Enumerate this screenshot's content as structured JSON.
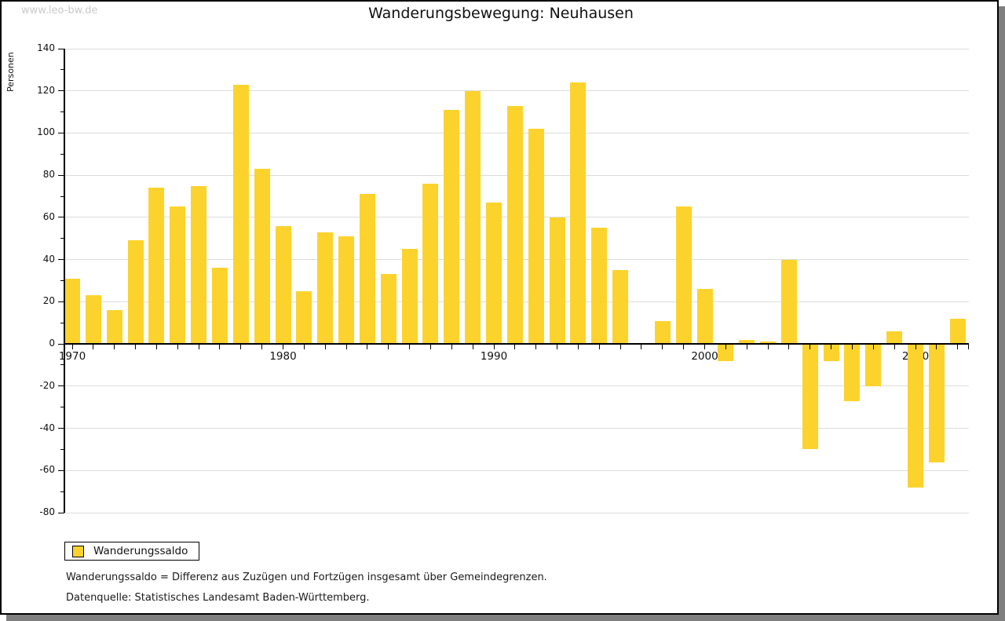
{
  "watermark": "www.leo-bw.de",
  "header": {
    "title": "Wanderungsbewegung: Neuhausen"
  },
  "y_axis_label": "Personen",
  "legend": {
    "label": "Wanderungssaldo"
  },
  "footnotes": {
    "definition": "Wanderungssaldo = Differenz aus Zuzügen und Fortzügen insgesamt über Gemeindegrenzen.",
    "source": "Datenquelle: Statistisches Landesamt Baden-Württemberg."
  },
  "colors": {
    "bar": "#fcd32d",
    "grid": "#dcdcdc",
    "axis": "#000000",
    "watermark": "#c9c9c9",
    "shadow": "#7f7f7f"
  },
  "chart_data": {
    "type": "bar",
    "title": "Wanderungsbewegung: Neuhausen",
    "xlabel": "",
    "ylabel": "Personen",
    "series_name": "Wanderungssaldo",
    "x": [
      1970,
      1971,
      1972,
      1973,
      1974,
      1975,
      1976,
      1977,
      1978,
      1979,
      1980,
      1981,
      1982,
      1983,
      1984,
      1985,
      1986,
      1987,
      1988,
      1989,
      1990,
      1991,
      1992,
      1993,
      1994,
      1995,
      1996,
      1997,
      1998,
      1999,
      2000,
      2001,
      2002,
      2003,
      2004,
      2005,
      2006,
      2007,
      2008,
      2009,
      2010,
      2011,
      2012
    ],
    "values": [
      31,
      23,
      16,
      49,
      74,
      65,
      75,
      36,
      123,
      83,
      56,
      25,
      53,
      51,
      71,
      33,
      45,
      76,
      111,
      120,
      67,
      113,
      102,
      60,
      124,
      55,
      35,
      0,
      11,
      65,
      26,
      -8,
      2,
      1,
      40,
      -50,
      -8,
      -27,
      -20,
      6,
      -68,
      -56,
      12
    ],
    "ylim": [
      -80,
      140
    ],
    "ytick_step": 20,
    "ytick_minor_step": 10,
    "xticks_labeled": [
      1970,
      1980,
      1990,
      2000,
      2010
    ],
    "grid": true,
    "legend_position": "bottom-left"
  }
}
